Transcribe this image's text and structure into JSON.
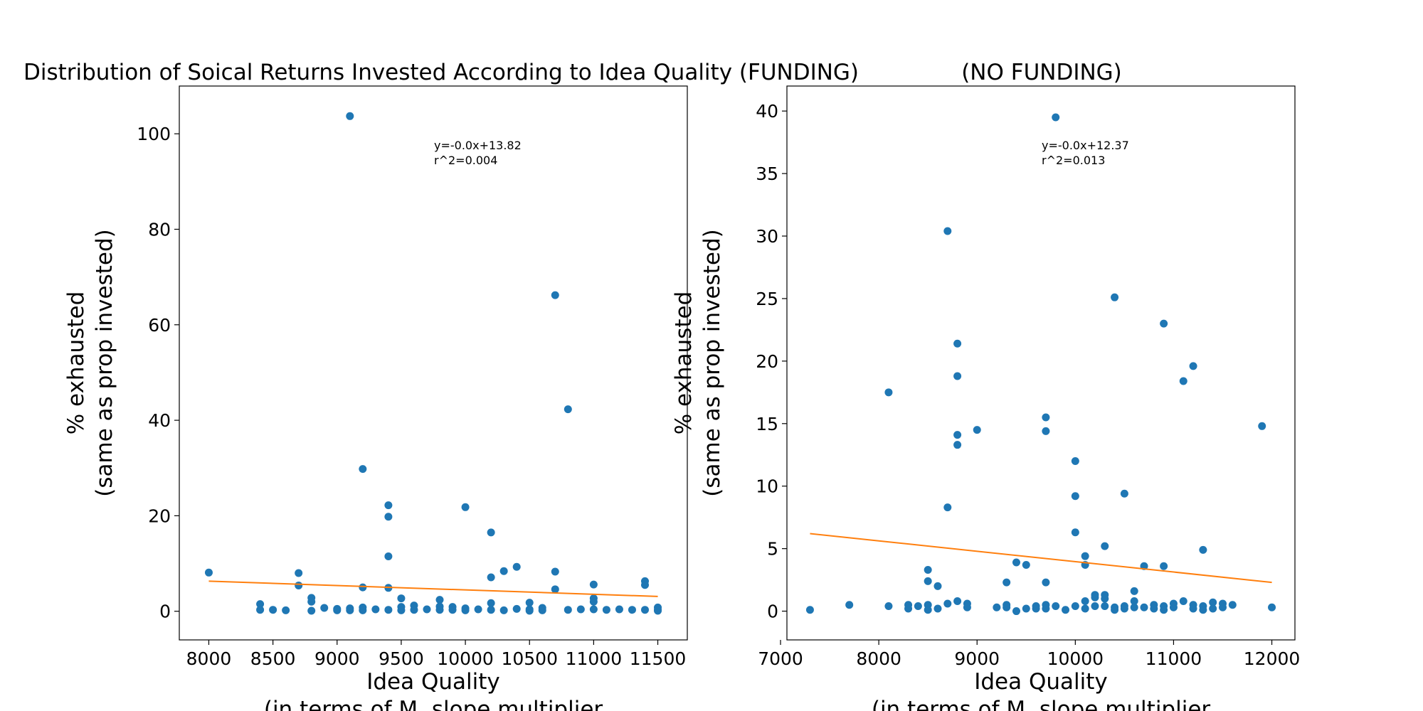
{
  "chart_data": [
    {
      "type": "scatter",
      "title": "Distribution of Soical Returns Invested According to Idea Quality (FUNDING)",
      "xlabel": "Idea Quality",
      "xlabel2": "(in terms of M, slope multiplier",
      "ylabel": "% exhausted",
      "ylabel2": "(same as prop invested)",
      "xlim": [
        7770,
        11730
      ],
      "ylim": [
        -6,
        110
      ],
      "xticks": [
        8000,
        8500,
        9000,
        9500,
        10000,
        10500,
        11000,
        11500
      ],
      "yticks": [
        0,
        20,
        40,
        60,
        80,
        100
      ],
      "annotation": [
        "y=-0.0x+13.82",
        "r^2=0.004"
      ],
      "fit_line": {
        "x": [
          8000,
          11500
        ],
        "y": [
          6.3,
          3.1
        ]
      },
      "point_color": "#1f77b4",
      "line_color": "#ff7f0e",
      "points": [
        [
          8000,
          8.1
        ],
        [
          8400,
          1.5
        ],
        [
          8400,
          0.3
        ],
        [
          8500,
          0.3
        ],
        [
          8600,
          0.2
        ],
        [
          8700,
          8.0
        ],
        [
          8700,
          5.4
        ],
        [
          8800,
          2.8
        ],
        [
          8800,
          2.0
        ],
        [
          8800,
          0.1
        ],
        [
          8900,
          0.7
        ],
        [
          9000,
          0.5
        ],
        [
          9000,
          0.2
        ],
        [
          9100,
          103.7
        ],
        [
          9100,
          0.6
        ],
        [
          9100,
          0.2
        ],
        [
          9200,
          29.8
        ],
        [
          9200,
          5.0
        ],
        [
          9200,
          0.8
        ],
        [
          9200,
          0.2
        ],
        [
          9300,
          0.4
        ],
        [
          9400,
          22.2
        ],
        [
          9400,
          19.8
        ],
        [
          9400,
          11.5
        ],
        [
          9400,
          4.9
        ],
        [
          9400,
          0.3
        ],
        [
          9500,
          2.7
        ],
        [
          9500,
          0.9
        ],
        [
          9500,
          0.2
        ],
        [
          9600,
          1.2
        ],
        [
          9600,
          0.3
        ],
        [
          9700,
          0.4
        ],
        [
          9800,
          2.4
        ],
        [
          9800,
          1.0
        ],
        [
          9800,
          0.3
        ],
        [
          9900,
          0.9
        ],
        [
          9900,
          0.3
        ],
        [
          10000,
          21.8
        ],
        [
          10000,
          0.6
        ],
        [
          10000,
          0.2
        ],
        [
          10100,
          0.4
        ],
        [
          10200,
          16.5
        ],
        [
          10200,
          7.1
        ],
        [
          10200,
          1.7
        ],
        [
          10200,
          0.3
        ],
        [
          10300,
          8.4
        ],
        [
          10300,
          0.2
        ],
        [
          10400,
          9.3
        ],
        [
          10400,
          0.5
        ],
        [
          10500,
          1.8
        ],
        [
          10500,
          0.4
        ],
        [
          10500,
          0.1
        ],
        [
          10600,
          0.7
        ],
        [
          10600,
          0.2
        ],
        [
          10700,
          66.2
        ],
        [
          10700,
          8.3
        ],
        [
          10700,
          4.6
        ],
        [
          10800,
          42.3
        ],
        [
          10800,
          0.3
        ],
        [
          10900,
          0.4
        ],
        [
          11000,
          5.6
        ],
        [
          11000,
          2.7
        ],
        [
          11000,
          2.0
        ],
        [
          11000,
          0.4
        ],
        [
          11100,
          0.3
        ],
        [
          11200,
          0.4
        ],
        [
          11300,
          0.3
        ],
        [
          11400,
          6.3
        ],
        [
          11400,
          5.5
        ],
        [
          11400,
          0.3
        ],
        [
          11500,
          0.8
        ],
        [
          11500,
          0.3
        ],
        [
          11500,
          0.1
        ]
      ]
    },
    {
      "type": "scatter",
      "title": "(NO FUNDING)",
      "xlabel": "Idea Quality",
      "xlabel2": "(in terms of M, slope multiplier",
      "ylabel": "% exhausted",
      "ylabel2": "(same as prop invested)",
      "xlim": [
        7065,
        12235
      ],
      "ylim": [
        -2.3,
        42
      ],
      "xticks": [
        7000,
        8000,
        9000,
        10000,
        11000,
        12000
      ],
      "yticks": [
        0,
        5,
        10,
        15,
        20,
        25,
        30,
        35,
        40
      ],
      "annotation": [
        "y=-0.0x+12.37",
        "r^2=0.013"
      ],
      "fit_line": {
        "x": [
          7300,
          12000
        ],
        "y": [
          6.2,
          2.3
        ]
      },
      "point_color": "#1f77b4",
      "line_color": "#ff7f0e",
      "points": [
        [
          7300,
          0.1
        ],
        [
          7700,
          0.5
        ],
        [
          8100,
          17.5
        ],
        [
          8100,
          0.4
        ],
        [
          8300,
          0.5
        ],
        [
          8300,
          0.2
        ],
        [
          8400,
          0.4
        ],
        [
          8500,
          3.3
        ],
        [
          8500,
          2.4
        ],
        [
          8500,
          0.5
        ],
        [
          8500,
          0.1
        ],
        [
          8600,
          2.0
        ],
        [
          8600,
          0.2
        ],
        [
          8700,
          30.4
        ],
        [
          8700,
          8.3
        ],
        [
          8700,
          0.6
        ],
        [
          8800,
          21.4
        ],
        [
          8800,
          18.8
        ],
        [
          8800,
          14.1
        ],
        [
          8800,
          13.3
        ],
        [
          8800,
          0.8
        ],
        [
          8900,
          0.6
        ],
        [
          8900,
          0.3
        ],
        [
          9000,
          14.5
        ],
        [
          9200,
          0.3
        ],
        [
          9300,
          2.3
        ],
        [
          9300,
          0.5
        ],
        [
          9300,
          0.3
        ],
        [
          9400,
          3.9
        ],
        [
          9400,
          0.0
        ],
        [
          9500,
          3.7
        ],
        [
          9500,
          0.2
        ],
        [
          9600,
          0.4
        ],
        [
          9600,
          0.2
        ],
        [
          9700,
          15.5
        ],
        [
          9700,
          14.4
        ],
        [
          9700,
          2.3
        ],
        [
          9700,
          0.5
        ],
        [
          9700,
          0.2
        ],
        [
          9800,
          39.5
        ],
        [
          9800,
          0.4
        ],
        [
          9900,
          0.1
        ],
        [
          10000,
          12.0
        ],
        [
          10000,
          9.2
        ],
        [
          10000,
          6.3
        ],
        [
          10000,
          0.4
        ],
        [
          10100,
          4.4
        ],
        [
          10100,
          3.7
        ],
        [
          10100,
          0.8
        ],
        [
          10100,
          0.2
        ],
        [
          10200,
          1.3
        ],
        [
          10200,
          1.1
        ],
        [
          10200,
          0.4
        ],
        [
          10300,
          5.2
        ],
        [
          10300,
          1.3
        ],
        [
          10300,
          1.0
        ],
        [
          10300,
          0.4
        ],
        [
          10400,
          25.1
        ],
        [
          10400,
          0.3
        ],
        [
          10400,
          0.1
        ],
        [
          10500,
          9.4
        ],
        [
          10500,
          0.4
        ],
        [
          10500,
          0.2
        ],
        [
          10600,
          1.6
        ],
        [
          10600,
          0.8
        ],
        [
          10600,
          0.3
        ],
        [
          10700,
          3.6
        ],
        [
          10700,
          0.3
        ],
        [
          10800,
          0.5
        ],
        [
          10800,
          0.2
        ],
        [
          10900,
          23.0
        ],
        [
          10900,
          3.6
        ],
        [
          10900,
          0.4
        ],
        [
          10900,
          0.1
        ],
        [
          11000,
          0.6
        ],
        [
          11000,
          0.3
        ],
        [
          11100,
          18.4
        ],
        [
          11100,
          0.8
        ],
        [
          11200,
          19.6
        ],
        [
          11200,
          0.5
        ],
        [
          11200,
          0.2
        ],
        [
          11300,
          4.9
        ],
        [
          11300,
          0.4
        ],
        [
          11300,
          0.1
        ],
        [
          11400,
          0.7
        ],
        [
          11400,
          0.2
        ],
        [
          11500,
          0.6
        ],
        [
          11500,
          0.3
        ],
        [
          11600,
          0.5
        ],
        [
          11900,
          14.8
        ],
        [
          12000,
          0.3
        ]
      ]
    }
  ]
}
